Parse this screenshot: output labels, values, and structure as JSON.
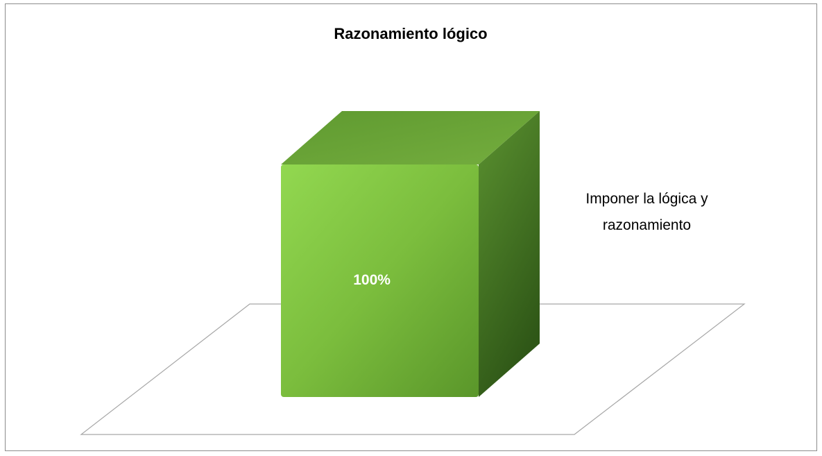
{
  "chart_data": {
    "type": "bar3d",
    "title": "Razonamiento lógico",
    "categories": [
      null
    ],
    "series": [
      {
        "name": "Imponer la lógica y razonamiento",
        "color": "#7ab648",
        "values": [
          100
        ],
        "value_labels": [
          "100%"
        ]
      }
    ]
  }
}
